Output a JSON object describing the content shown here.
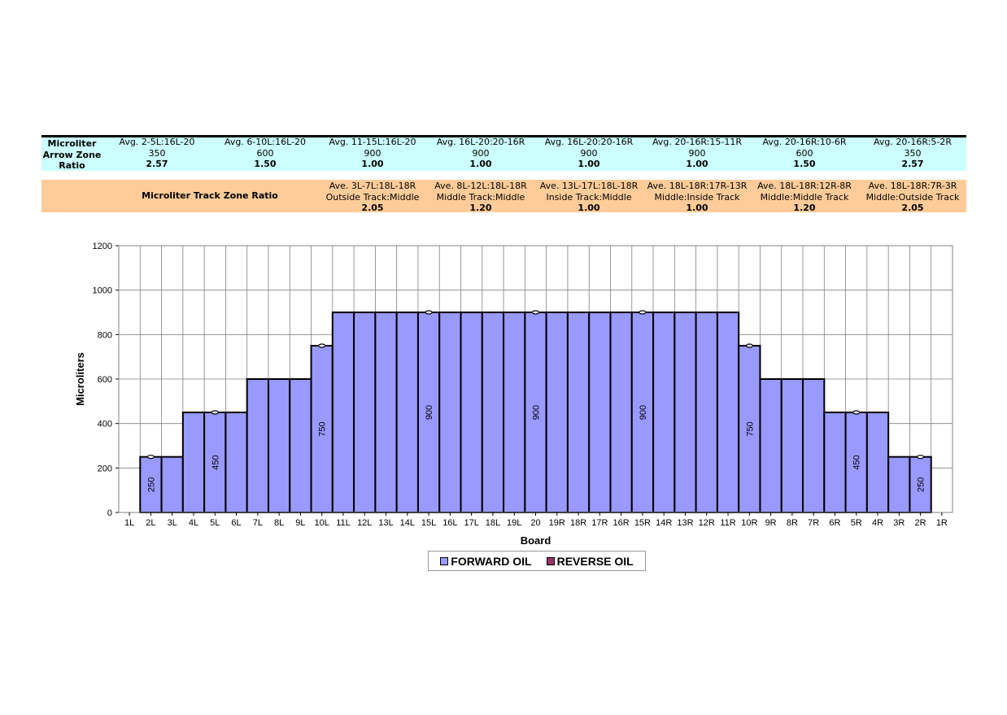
{
  "arrow_zone": {
    "label": "Microliter Arrow Zone Ratio",
    "label_lines": [
      "Microliter",
      "Arrow Zone",
      "Ratio"
    ],
    "columns": [
      {
        "title": "Avg. 2-5L:16L-20",
        "value": "350",
        "ratio": "2.57"
      },
      {
        "title": "Avg. 6-10L:16L-20",
        "value": "600",
        "ratio": "1.50"
      },
      {
        "title": "Avg. 11-15L:16L-20",
        "value": "900",
        "ratio": "1.00"
      },
      {
        "title": "Avg. 16L-20:20-16R",
        "value": "900",
        "ratio": "1.00"
      },
      {
        "title": "Avg. 16L-20:20-16R",
        "value": "900",
        "ratio": "1.00"
      },
      {
        "title": "Avg. 20-16R:15-11R",
        "value": "900",
        "ratio": "1.00"
      },
      {
        "title": "Avg. 20-16R:10-6R",
        "value": "600",
        "ratio": "1.50"
      },
      {
        "title": "Avg. 20-16R:5-2R",
        "value": "350",
        "ratio": "2.57"
      }
    ]
  },
  "track_zone": {
    "label": "Microliter Track Zone Ratio",
    "columns": [
      {
        "title": "Ave. 3L-7L:18L-18R",
        "sub": "Outside Track:Middle",
        "ratio": "2.05"
      },
      {
        "title": "Ave. 8L-12L:18L-18R",
        "sub": "Middle Track:Middle",
        "ratio": "1.20"
      },
      {
        "title": "Ave. 13L-17L:18L-18R",
        "sub": "Inside Track:Middle",
        "ratio": "1.00"
      },
      {
        "title": "Ave. 18L-18R:17R-13R",
        "sub": "Middle:Inside Track",
        "ratio": "1.00"
      },
      {
        "title": "Ave. 18L-18R:12R-8R",
        "sub": "Middle:Middle Track",
        "ratio": "1.20"
      },
      {
        "title": "Ave. 18L-18R:7R-3R",
        "sub": "Middle:Outside Track",
        "ratio": "2.05"
      }
    ]
  },
  "chart_data": {
    "type": "bar",
    "xlabel": "Board",
    "ylabel": "Microliters",
    "ylim": [
      0,
      1200
    ],
    "yticks": [
      0,
      200,
      400,
      600,
      800,
      1000,
      1200
    ],
    "grid": true,
    "legend_position": "bottom",
    "categories": [
      "1L",
      "2L",
      "3L",
      "4L",
      "5L",
      "6L",
      "7L",
      "8L",
      "9L",
      "10L",
      "11L",
      "12L",
      "13L",
      "14L",
      "15L",
      "16L",
      "17L",
      "18L",
      "19L",
      "20",
      "19R",
      "18R",
      "17R",
      "16R",
      "15R",
      "14R",
      "13R",
      "12R",
      "11R",
      "10R",
      "9R",
      "8R",
      "7R",
      "6R",
      "5R",
      "4R",
      "3R",
      "2R",
      "1R"
    ],
    "series": [
      {
        "name": "FORWARD OIL",
        "color": "#9999ff",
        "values": [
          0,
          250,
          250,
          450,
          450,
          450,
          600,
          600,
          600,
          750,
          900,
          900,
          900,
          900,
          900,
          900,
          900,
          900,
          900,
          900,
          900,
          900,
          900,
          900,
          900,
          900,
          900,
          900,
          900,
          750,
          600,
          600,
          600,
          450,
          450,
          450,
          250,
          250,
          0
        ]
      },
      {
        "name": "REVERSE OIL",
        "color": "#993366",
        "values": [
          0,
          0,
          0,
          0,
          0,
          0,
          0,
          0,
          0,
          0,
          0,
          0,
          0,
          0,
          0,
          0,
          0,
          0,
          0,
          0,
          0,
          0,
          0,
          0,
          0,
          0,
          0,
          0,
          0,
          0,
          0,
          0,
          0,
          0,
          0,
          0,
          0,
          0,
          0
        ]
      }
    ],
    "data_labels": [
      {
        "category": "2L",
        "text": "250"
      },
      {
        "category": "5L",
        "text": "450"
      },
      {
        "category": "10L",
        "text": "750"
      },
      {
        "category": "15L",
        "text": "900"
      },
      {
        "category": "20",
        "text": "900"
      },
      {
        "category": "15R",
        "text": "900"
      },
      {
        "category": "10R",
        "text": "750"
      },
      {
        "category": "5R",
        "text": "450"
      },
      {
        "category": "2R",
        "text": "250"
      }
    ],
    "markers": [
      "2L",
      "5L",
      "10L",
      "15L",
      "20",
      "15R",
      "10R",
      "5R",
      "2R"
    ]
  }
}
